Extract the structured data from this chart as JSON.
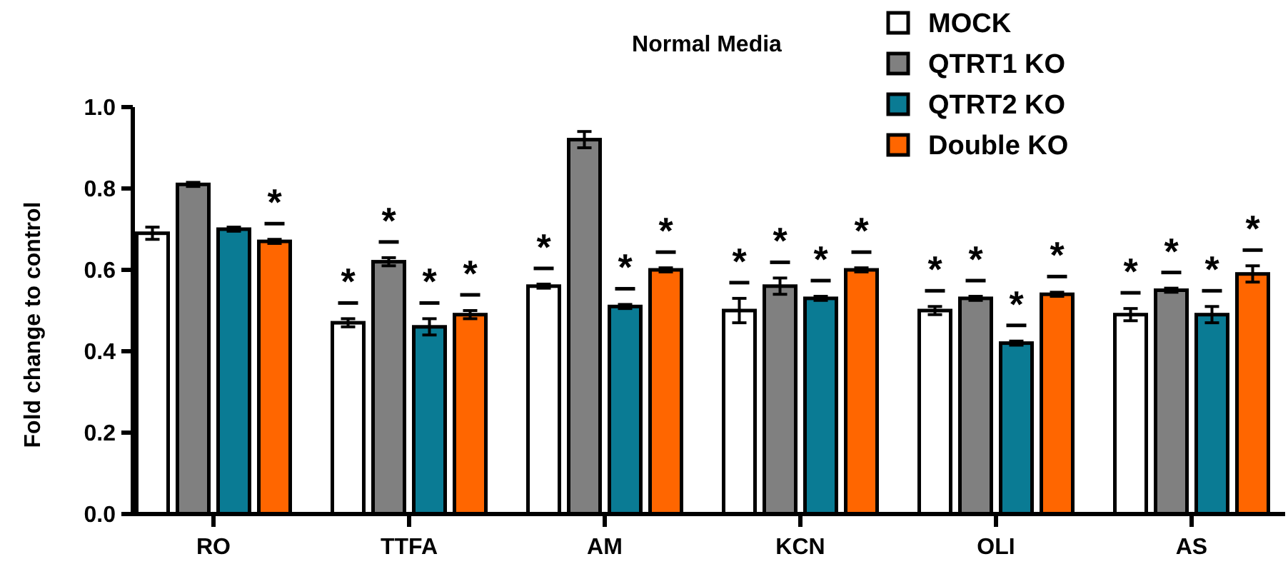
{
  "chart_data": {
    "type": "bar",
    "title": "Normal Media",
    "ylabel": "Fold change to control",
    "categories": [
      "RO",
      "TTFA",
      "AM",
      "KCN",
      "OLI",
      "AS"
    ],
    "series": [
      {
        "name": "MOCK",
        "color": "#ffffff",
        "values": [
          0.69,
          0.47,
          0.56,
          0.5,
          0.5,
          0.49
        ],
        "errors": [
          0.015,
          0.01,
          0.005,
          0.03,
          0.01,
          0.015
        ],
        "value_labels": [
          null,
          "*",
          "*",
          "*",
          "*",
          "*"
        ]
      },
      {
        "name": "QTRT1 KO",
        "color": "#808080",
        "values": [
          0.81,
          0.62,
          0.92,
          0.56,
          0.53,
          0.55
        ],
        "errors": [
          0.005,
          0.01,
          0.02,
          0.02,
          0.005,
          0.005
        ],
        "value_labels": [
          null,
          "*",
          null,
          "*",
          "*",
          "*"
        ]
      },
      {
        "name": "QTRT2 KO",
        "color": "#0a7b94",
        "values": [
          0.7,
          0.46,
          0.51,
          0.53,
          0.42,
          0.49
        ],
        "errors": [
          0.005,
          0.02,
          0.005,
          0.005,
          0.005,
          0.02
        ],
        "value_labels": [
          null,
          "*",
          "*",
          "*",
          "*",
          "*"
        ]
      },
      {
        "name": "Double KO",
        "color": "#ff6600",
        "values": [
          0.67,
          0.49,
          0.6,
          0.6,
          0.54,
          0.59
        ],
        "errors": [
          0.005,
          0.01,
          0.005,
          0.005,
          0.005,
          0.02
        ],
        "value_labels": [
          "*",
          "*",
          "*",
          "*",
          "*",
          "*"
        ]
      }
    ],
    "ylim": [
      0,
      1
    ],
    "yticks": [
      {
        "value": 0,
        "label": "0.0"
      },
      {
        "value": 0.2,
        "label": "0.2"
      },
      {
        "value": 0.4,
        "label": "0.4"
      },
      {
        "value": 0.6,
        "label": "0.6"
      },
      {
        "value": 0.8,
        "label": "0.8"
      },
      {
        "value": 1,
        "label": "1.0"
      }
    ],
    "legend": "top right",
    "grid": false
  }
}
